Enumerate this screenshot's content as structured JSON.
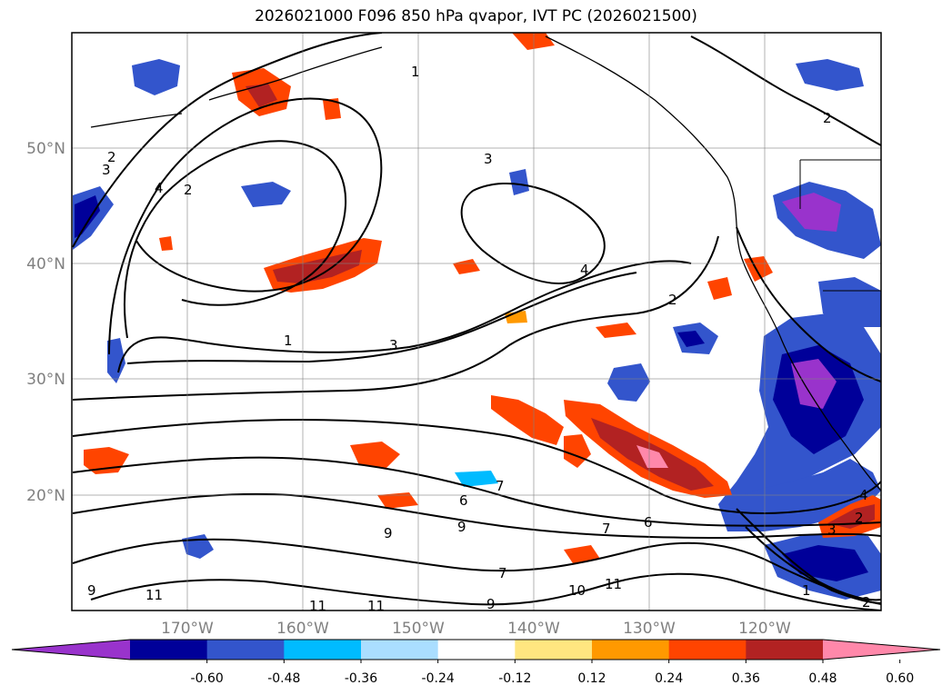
{
  "title": "2026021000 F096 850 hPa qvapor, IVT PC (2026021500)",
  "map": {
    "lon_range": [
      -180,
      -110
    ],
    "lat_range": [
      10,
      60
    ],
    "lat_labels": [
      "50°N",
      "40°N",
      "30°N",
      "20°N"
    ],
    "lon_labels": [
      "170°W",
      "160°W",
      "150°W",
      "140°W",
      "130°W",
      "120°W"
    ],
    "contour_labels": [
      "1",
      "2",
      "3",
      "4",
      "2",
      "3",
      "2",
      "1",
      "3",
      "4",
      "2",
      "6",
      "7",
      "7",
      "6",
      "9",
      "9",
      "7",
      "10",
      "11",
      "11",
      "11",
      "11",
      "9",
      "9",
      "4",
      "3",
      "2",
      "1",
      "2"
    ]
  },
  "colorbar": {
    "tick_labels": [
      "-0.60",
      "-0.48",
      "-0.36",
      "-0.24",
      "-0.12",
      "0.12",
      "0.24",
      "0.36",
      "0.48",
      "0.60"
    ],
    "colors": [
      "#9933cc",
      "#000099",
      "#3355cc",
      "#00bbff",
      "#aadeff",
      "#ffffff",
      "#ffe680",
      "#ff9900",
      "#ff4400",
      "#b22222",
      "#ff88aa"
    ]
  },
  "shading_colors": {
    "neg_light": "#aadeff",
    "neg_mid": "#00bbff",
    "neg_strong": "#3355cc",
    "neg_deep": "#000099",
    "neg_max": "#9933cc",
    "pos_light": "#ffe680",
    "pos_mid": "#ff9900",
    "pos_strong": "#ff4400",
    "pos_deep": "#b22222",
    "pos_max": "#ff88aa"
  }
}
